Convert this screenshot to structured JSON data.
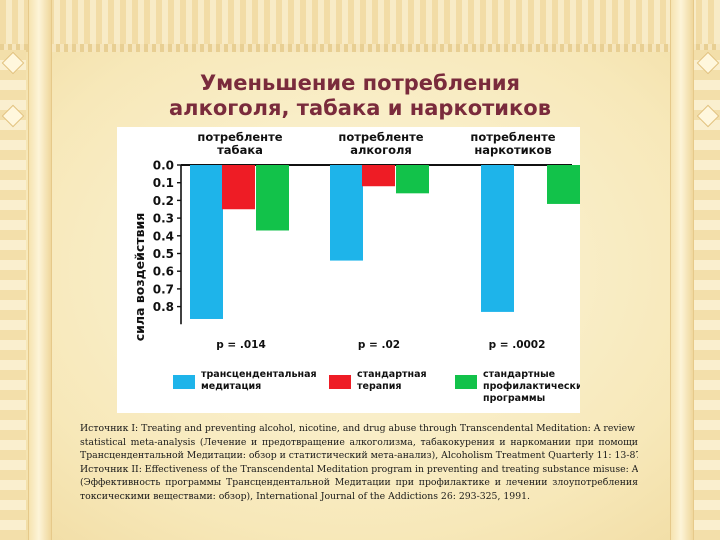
{
  "slide": {
    "title_line1": "Уменьшение потребления",
    "title_line2": "алкоголя, табака и наркотиков",
    "source_lines": [
      "Источник I: Treating and preventing alcohol, nicotine, and drug abuse through Transcendental Meditation: A review and",
      "statistical meta-analysis (Лечение и предотвращение алкоголизма, табакокурения и наркомании при помощи",
      "Трансцендентальной Медитации: обзор и статистический мета-анализ), Alcoholism Treatment Quarterly 11: 13-87, 1994.",
      "Источник II: Effectiveness of the Transcendental Meditation program in preventing and treating substance misuse: A review",
      "(Эффективность программы Трансцендентальной Медитации при профилактике и лечении злоупотребления",
      "токсическими веществами: обзор), International Journal of the Addictions 26: 293-325, 1991."
    ]
  },
  "chart_data": {
    "type": "bar",
    "ylabel": "сила воздействия",
    "y_ticks": [
      "0.0",
      "0.1",
      "0.2",
      "0.3",
      "0.4",
      "0.5",
      "0.6",
      "0.7",
      "0.8"
    ],
    "ylim": [
      0,
      0.85
    ],
    "y_direction": "downward",
    "categories": [
      "потребленте табака",
      "потребленте алкоголя",
      "потребленте наркотиков"
    ],
    "category_lines": [
      [
        "потребленте",
        "табака"
      ],
      [
        "потребленте",
        "алкоголя"
      ],
      [
        "потребленте",
        "наркотиков"
      ]
    ],
    "p_values": [
      "p = .014",
      "p = .02",
      "p = .0002"
    ],
    "series": [
      {
        "name": "трансцендентальная медитация",
        "name_lines": [
          "трансцендентальная",
          "медитация"
        ],
        "color": "#1eb4ea",
        "values": [
          0.87,
          0.54,
          0.83
        ]
      },
      {
        "name": "стандартная терапия",
        "name_lines": [
          "стандартная",
          "терапия"
        ],
        "color": "#ee1c25",
        "values": [
          0.25,
          0.12,
          null
        ]
      },
      {
        "name": "стандартные профилактические программы",
        "name_lines": [
          "стандартные",
          "профилактические",
          "программы"
        ],
        "color": "#12c24a",
        "values": [
          0.37,
          0.16,
          0.22
        ]
      }
    ],
    "legend_position": "bottom"
  }
}
